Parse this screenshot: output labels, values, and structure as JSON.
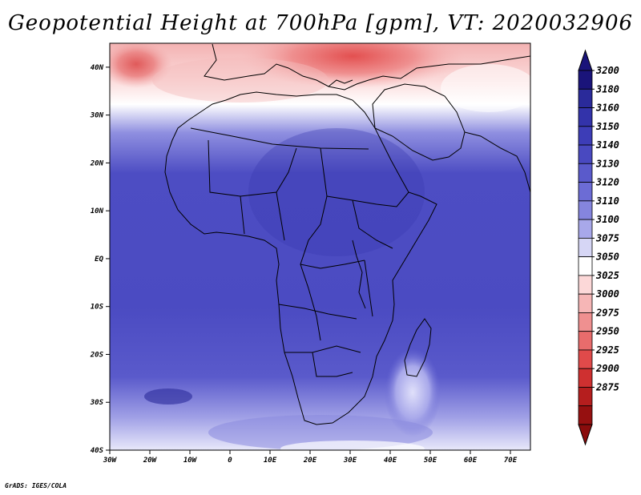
{
  "title": "Geopotential Height at 700hPa [gpm], VT: 2020032906",
  "credit": "GrADS: IGES/COLA",
  "map": {
    "lon_labels": [
      "30W",
      "20W",
      "10W",
      "0",
      "10E",
      "20E",
      "30E",
      "40E",
      "50E",
      "60E",
      "70E"
    ],
    "lat_labels": [
      "40N",
      "30N",
      "20N",
      "10N",
      "EQ",
      "10S",
      "20S",
      "30S",
      "40S"
    ],
    "lon_range": [
      -30,
      75
    ],
    "lat_range": [
      -40,
      45
    ]
  },
  "colorbar": {
    "levels": [
      "3200",
      "3180",
      "3160",
      "3150",
      "3140",
      "3130",
      "3120",
      "3110",
      "3100",
      "3075",
      "3050",
      "3025",
      "3000",
      "2975",
      "2950",
      "2925",
      "2900",
      "2875"
    ],
    "colors": [
      "#1a147a",
      "#2a2a9a",
      "#3333aa",
      "#3d3db7",
      "#4949c0",
      "#5a5acb",
      "#6c6cd5",
      "#8585de",
      "#a8a8ea",
      "#d6d6f5",
      "#ffffff",
      "#fcd8d8",
      "#f6b6b6",
      "#ef9090",
      "#e86c6c",
      "#e04a4a",
      "#cf3030",
      "#b51e1e",
      "#961010"
    ],
    "top_color": "#1a147a",
    "bottom_color": "#8a0c0c"
  }
}
